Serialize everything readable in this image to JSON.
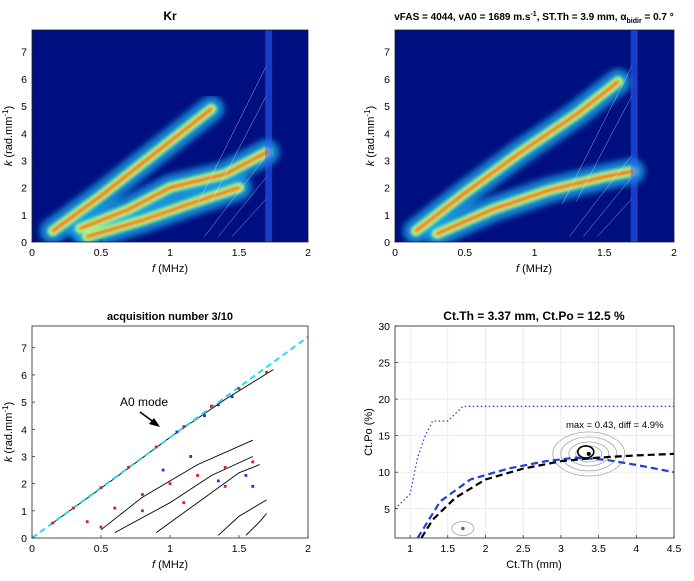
{
  "figure": {
    "panels": [
      {
        "id": "kr",
        "title": "Kr",
        "xlabel_var": "f",
        "xlabel_unit": " (MHz)",
        "ylabel_var": "k",
        "ylabel_unit": " (rad.mm",
        "ylabel_sup": "-1",
        "ylabel_close": ")"
      },
      {
        "id": "fit",
        "title_main": "vFAS = 4044, vA0 = 1689 m.s",
        "title_sup": "-1",
        "title_mid": ", ST.Th = 3.9 mm, α",
        "title_sub": "bidir",
        "title_end": " = 0.7 °",
        "xlabel_var": "f",
        "xlabel_unit": " (MHz)",
        "ylabel_var": "k",
        "ylabel_unit": " (rad.mm",
        "ylabel_sup": "-1",
        "ylabel_close": ")"
      },
      {
        "id": "acq",
        "title": "acquisition number 3/10",
        "annotation": "A0 mode",
        "xlabel_var": "f",
        "xlabel_unit": " (MHz)",
        "ylabel_var": "k",
        "ylabel_unit": " (rad.mm",
        "ylabel_sup": "-1",
        "ylabel_close": ")"
      },
      {
        "id": "ctth",
        "title": "Ct.Th = 3.37 mm, Ct.Po = 12.5 %",
        "annotation": "max = 0.43, diff = 4.9%",
        "xlabel": "Ct.Th (mm)",
        "ylabel": "Ct.Po (%)"
      }
    ]
  },
  "chart_data": [
    {
      "type": "heatmap",
      "title": "Kr",
      "xlabel": "f (MHz)",
      "ylabel": "k (rad.mm-1)",
      "xlim": [
        0,
        2
      ],
      "ylim": [
        0,
        7.8
      ],
      "xticks": [
        0,
        0.5,
        1,
        1.5,
        2
      ],
      "yticks": [
        0,
        1,
        2,
        3,
        4,
        5,
        6,
        7
      ],
      "colormap": "jet",
      "ridges": [
        {
          "x": [
            0.15,
            0.5,
            0.8,
            1.1,
            1.3
          ],
          "y": [
            0.4,
            1.7,
            2.9,
            4.1,
            4.9
          ]
        },
        {
          "x": [
            0.35,
            0.7,
            1.0,
            1.4,
            1.7
          ],
          "y": [
            0.5,
            1.2,
            2.0,
            2.5,
            3.3
          ]
        },
        {
          "x": [
            0.4,
            0.8,
            1.2,
            1.5
          ],
          "y": [
            0.2,
            0.8,
            1.5,
            2.0
          ]
        }
      ]
    },
    {
      "type": "heatmap",
      "title": "vFAS = 4044, vA0 = 1689 m.s-1, ST.Th = 3.9 mm, α bidir = 0.7 °",
      "xlabel": "f (MHz)",
      "ylabel": "k (rad.mm-1)",
      "xlim": [
        0,
        2
      ],
      "ylim": [
        0,
        7.8
      ],
      "xticks": [
        0,
        0.5,
        1,
        1.5,
        2
      ],
      "yticks": [
        0,
        1,
        2,
        3,
        4,
        5,
        6,
        7
      ],
      "colormap": "jet",
      "ridges": [
        {
          "x": [
            0.15,
            0.5,
            0.9,
            1.3,
            1.6
          ],
          "y": [
            0.4,
            1.8,
            3.3,
            4.7,
            5.9
          ]
        },
        {
          "x": [
            0.3,
            0.7,
            1.1,
            1.5,
            1.7
          ],
          "y": [
            0.3,
            1.2,
            1.9,
            2.4,
            2.6
          ]
        }
      ]
    },
    {
      "type": "scatter",
      "title": "acquisition number 3/10",
      "xlabel": "f (MHz)",
      "ylabel": "k (rad.mm-1)",
      "xlim": [
        0,
        2
      ],
      "ylim": [
        0,
        7.8
      ],
      "xticks": [
        0,
        0.5,
        1,
        1.5,
        2
      ],
      "yticks": [
        0,
        1,
        2,
        3,
        4,
        5,
        6,
        7
      ],
      "annotation": "A0 mode",
      "reference_line": {
        "x": [
          0,
          2
        ],
        "y": [
          0,
          7.4
        ],
        "color": "#22ddee",
        "style": "dashed"
      },
      "model_curves": [
        {
          "x": [
            0.15,
            0.6,
            1.0,
            1.4,
            1.75
          ],
          "y": [
            0.55,
            2.2,
            3.7,
            5.1,
            6.2
          ]
        },
        {
          "x": [
            0.5,
            0.8,
            1.2,
            1.6
          ],
          "y": [
            0.3,
            1.5,
            2.7,
            3.6
          ]
        },
        {
          "x": [
            0.6,
            1.0,
            1.3,
            1.6
          ],
          "y": [
            0.2,
            1.3,
            2.3,
            3.0
          ]
        },
        {
          "x": [
            0.9,
            1.2,
            1.5,
            1.65
          ],
          "y": [
            0.2,
            1.3,
            2.4,
            2.7
          ]
        },
        {
          "x": [
            1.35,
            1.5,
            1.7
          ],
          "y": [
            0.1,
            0.8,
            1.4
          ]
        },
        {
          "x": [
            1.55,
            1.65,
            1.7
          ],
          "y": [
            0.1,
            0.6,
            0.9
          ]
        }
      ],
      "series": [
        {
          "name": "",
          "color": "#d62020",
          "points_x": [
            0.15,
            0.3,
            0.5,
            0.7,
            0.9,
            1.1,
            1.3,
            1.5,
            1.7,
            0.4,
            0.6,
            0.8,
            1.0,
            1.2,
            1.4,
            1.6,
            0.5,
            0.8,
            1.1,
            1.4
          ],
          "points_y": [
            0.55,
            1.1,
            1.85,
            2.6,
            3.35,
            4.1,
            4.85,
            5.5,
            6.1,
            0.6,
            1.1,
            1.6,
            2.0,
            2.3,
            2.6,
            2.8,
            0.4,
            1.0,
            1.3,
            1.9
          ]
        },
        {
          "name": "",
          "color": "#2030e0",
          "points_x": [
            1.05,
            1.25,
            1.35,
            1.45,
            0.95,
            1.15,
            1.35,
            1.55,
            1.6
          ],
          "points_y": [
            3.9,
            4.5,
            4.9,
            5.2,
            2.5,
            3.0,
            2.1,
            2.3,
            1.9
          ]
        }
      ]
    },
    {
      "type": "line",
      "title": "Ct.Th = 3.37 mm, Ct.Po = 12.5 %",
      "xlabel": "Ct.Th (mm)",
      "ylabel": "Ct.Po (%)",
      "xlim": [
        0.8,
        4.5
      ],
      "ylim": [
        1,
        30
      ],
      "xticks": [
        1,
        1.5,
        2,
        2.5,
        3,
        3.5,
        4,
        4.5
      ],
      "yticks": [
        5,
        10,
        15,
        20,
        25,
        30
      ],
      "grid": true,
      "annotation": "max = 0.43, diff = 4.9%",
      "series": [
        {
          "name": "",
          "color": "#2233dd",
          "style": "dotted",
          "x": [
            0.8,
            1.0,
            1.1,
            1.2,
            1.3,
            1.5,
            1.6,
            1.7,
            2.0,
            3.0,
            4.5
          ],
          "y": [
            5,
            7,
            12,
            15,
            17,
            17,
            18,
            19,
            19,
            19,
            19
          ]
        },
        {
          "name": "",
          "color": "#1f3fdd",
          "style": "dashed",
          "x": [
            1.1,
            1.4,
            1.8,
            2.3,
            2.8,
            3.2,
            3.6,
            4.0,
            4.5
          ],
          "y": [
            1,
            6,
            9,
            10.5,
            11.5,
            12,
            11.7,
            11,
            10
          ]
        },
        {
          "name": "",
          "color": "#000000",
          "style": "dashed",
          "x": [
            1.15,
            1.3,
            1.6,
            2.0,
            2.5,
            3.0,
            3.5,
            4.0,
            4.5
          ],
          "y": [
            1,
            3.5,
            6.5,
            9,
            10.5,
            11.5,
            12,
            12.3,
            12.5
          ]
        }
      ],
      "maximum_point": {
        "x": 3.37,
        "y": 12.5
      },
      "secondary_point": {
        "x": 1.7,
        "y": 2.3
      }
    }
  ]
}
